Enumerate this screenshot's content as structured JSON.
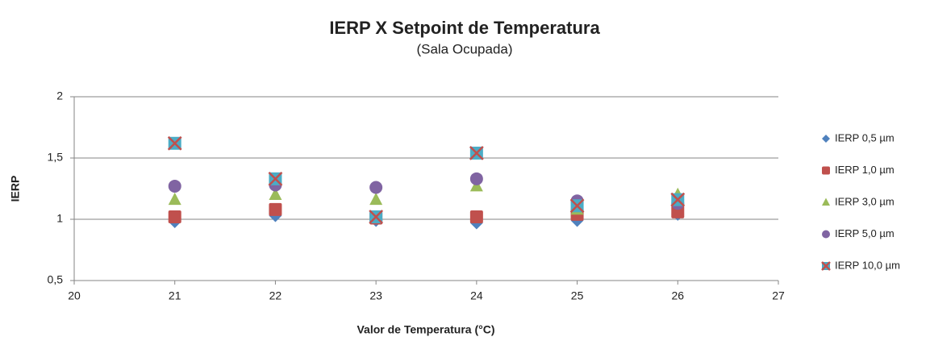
{
  "chart_data": {
    "type": "scatter",
    "title": "IERP X Setpoint de Temperatura",
    "subtitle": "(Sala Ocupada)",
    "xlabel": "Valor de Temperatura (°C)",
    "ylabel": "IERP",
    "x": [
      21,
      22,
      23,
      24,
      25,
      26
    ],
    "series": [
      {
        "name": "IERP 0,5 µm",
        "color": "#4f81bd",
        "marker": "diamond",
        "values": [
          0.98,
          1.03,
          0.99,
          0.97,
          0.99,
          1.04
        ]
      },
      {
        "name": "IERP 1,0 µm",
        "color": "#c0504d",
        "marker": "square",
        "values": [
          1.02,
          1.08,
          1.01,
          1.02,
          1.04,
          1.06
        ]
      },
      {
        "name": "IERP 3,0 µm",
        "color": "#9bbb59",
        "marker": "triangle",
        "values": [
          1.16,
          1.2,
          1.16,
          1.27,
          1.08,
          1.2
        ]
      },
      {
        "name": "IERP 5,0 µm",
        "color": "#8064a2",
        "marker": "circle",
        "values": [
          1.27,
          1.28,
          1.26,
          1.33,
          1.15,
          1.13
        ]
      },
      {
        "name": "IERP 10,0 µm",
        "color": "#4bacc6",
        "cross_color": "#c0504d",
        "marker": "x",
        "values": [
          1.62,
          1.33,
          1.02,
          1.54,
          1.11,
          1.16
        ]
      }
    ],
    "xlim": [
      20,
      27
    ],
    "xticks": [
      20,
      21,
      22,
      23,
      24,
      25,
      26,
      27
    ],
    "ylim": [
      0.5,
      2
    ],
    "yticks": [
      {
        "value": 0.5,
        "label": "0,5"
      },
      1,
      {
        "value": 1.5,
        "label": "1,5"
      },
      2
    ],
    "grid": true,
    "legend": "right"
  }
}
